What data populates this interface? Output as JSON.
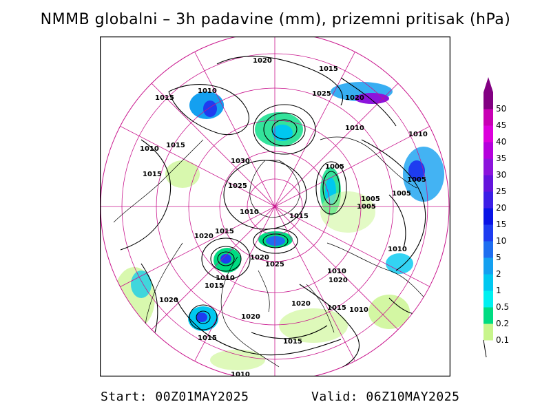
{
  "title": "NMMB globalni – 3h padavine (mm), prizemni pritisak (hPa)",
  "footer": {
    "start": "Start: 00Z01MAY2025",
    "valid": "Valid: 06Z10MAY2025"
  },
  "legend": {
    "levels": [
      "0.1",
      "0.2",
      "0.5",
      "1",
      "2",
      "5",
      "10",
      "15",
      "20",
      "25",
      "30",
      "35",
      "40",
      "45",
      "50"
    ],
    "colors": [
      "#c8f58c",
      "#00dc82",
      "#00f0f0",
      "#00c8f0",
      "#14a0f0",
      "#1e6ef0",
      "#1e3cf0",
      "#0a14e6",
      "#3c1ee6",
      "#6414dc",
      "#8c14dc",
      "#b400dc",
      "#dc00dc",
      "#c800b4",
      "#820082"
    ]
  },
  "map": {
    "projection": "polar stereographic",
    "background": "#ffffff",
    "grid_color": "#c8148c",
    "coast_color": "#000000",
    "isobar_labels": [
      "1020",
      "1015",
      "1010",
      "1025",
      "1020",
      "1015",
      "1010",
      "1010",
      "1010",
      "1015",
      "1005",
      "1030",
      "1015",
      "1025",
      "1005",
      "1005",
      "1005",
      "1010",
      "1015",
      "1020",
      "1015",
      "1005",
      "1010",
      "1020",
      "1025",
      "1010",
      "1010",
      "1015",
      "1020",
      "1020",
      "1020",
      "1015",
      "1010",
      "1015",
      "1015",
      "1010",
      "1020"
    ]
  }
}
